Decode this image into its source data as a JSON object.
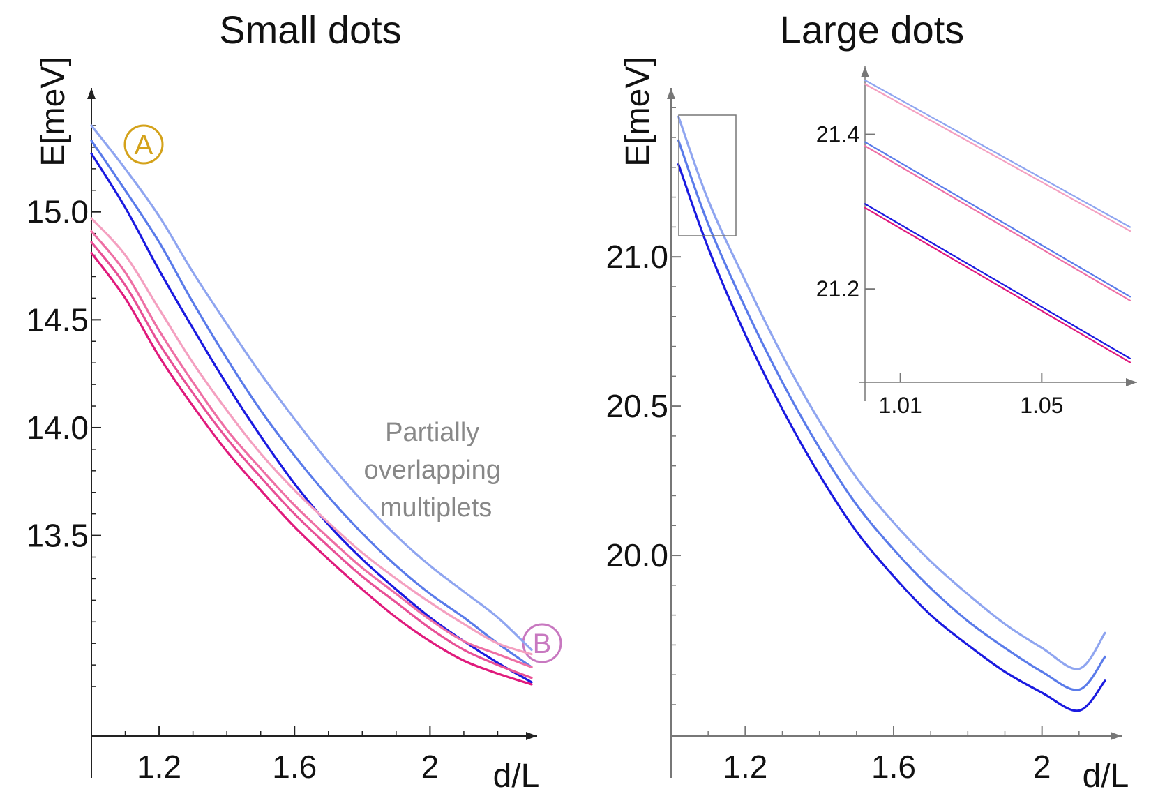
{
  "chart_data": [
    {
      "type": "line",
      "title": "Small dots",
      "xlabel": "d/L",
      "ylabel": "E[meV]",
      "xlim": [
        1.0,
        2.3
      ],
      "ylim": [
        12.7,
        15.4
      ],
      "xticks": [
        "1.2",
        "1.6",
        "2"
      ],
      "yticks": [
        "13.5",
        "14.0",
        "14.5",
        "15.0"
      ],
      "grid": false,
      "annotations": [
        {
          "text": "Partially overlapping multiplets",
          "lines": [
            "Partially",
            "overlapping",
            "multiplets"
          ],
          "color": "#888888"
        }
      ],
      "markers": [
        {
          "label": "A",
          "color": "#D4A21A"
        },
        {
          "label": "B",
          "color": "#C878C0"
        }
      ],
      "series": [
        {
          "color": "#8FA5F0",
          "x": [
            1.0,
            1.1,
            1.2,
            1.3,
            1.4,
            1.5,
            1.6,
            1.7,
            1.8,
            1.9,
            2.0,
            2.1,
            2.2,
            2.3
          ],
          "values": [
            15.4,
            15.2,
            14.98,
            14.72,
            14.48,
            14.25,
            14.04,
            13.84,
            13.66,
            13.5,
            13.36,
            13.24,
            13.12,
            12.97
          ]
        },
        {
          "color": "#5A7BEA",
          "x": [
            1.0,
            1.1,
            1.2,
            1.3,
            1.4,
            1.5,
            1.6,
            1.7,
            1.8,
            1.9,
            2.0,
            2.1,
            2.2,
            2.3
          ],
          "values": [
            15.33,
            15.1,
            14.86,
            14.58,
            14.32,
            14.08,
            13.87,
            13.68,
            13.51,
            13.36,
            13.23,
            13.12,
            13.0,
            12.89
          ]
        },
        {
          "color": "#1A1AE0",
          "x": [
            1.0,
            1.1,
            1.2,
            1.3,
            1.4,
            1.5,
            1.6,
            1.7,
            1.8,
            1.9,
            2.0,
            2.1,
            2.2,
            2.3
          ],
          "values": [
            15.27,
            15.02,
            14.73,
            14.46,
            14.2,
            13.96,
            13.74,
            13.55,
            13.39,
            13.25,
            13.12,
            13.01,
            12.91,
            12.82
          ]
        },
        {
          "color": "#F4A0C0",
          "x": [
            1.0,
            1.1,
            1.2,
            1.3,
            1.4,
            1.5,
            1.6,
            1.7,
            1.8,
            1.9,
            2.0,
            2.1,
            2.2,
            2.3
          ],
          "values": [
            14.97,
            14.8,
            14.55,
            14.3,
            14.08,
            13.88,
            13.71,
            13.56,
            13.42,
            13.3,
            13.19,
            13.09,
            13.0,
            12.95
          ]
        },
        {
          "color": "#EE6FA4",
          "x": [
            1.0,
            1.1,
            1.2,
            1.3,
            1.4,
            1.5,
            1.6,
            1.7,
            1.8,
            1.9,
            2.0,
            2.1,
            2.2,
            2.3
          ],
          "values": [
            14.91,
            14.72,
            14.45,
            14.21,
            13.99,
            13.81,
            13.64,
            13.49,
            13.35,
            13.23,
            13.11,
            13.01,
            12.95,
            12.89
          ]
        },
        {
          "color": "#E85096",
          "x": [
            1.0,
            1.1,
            1.2,
            1.3,
            1.4,
            1.5,
            1.6,
            1.7,
            1.8,
            1.9,
            2.0,
            2.1,
            2.2,
            2.3
          ],
          "values": [
            14.86,
            14.66,
            14.39,
            14.16,
            13.95,
            13.77,
            13.6,
            13.45,
            13.31,
            13.19,
            13.07,
            12.97,
            12.9,
            12.84
          ]
        },
        {
          "color": "#E01A7C",
          "x": [
            1.0,
            1.1,
            1.2,
            1.3,
            1.4,
            1.5,
            1.6,
            1.7,
            1.8,
            1.9,
            2.0,
            2.1,
            2.2,
            2.3
          ],
          "values": [
            14.81,
            14.6,
            14.33,
            14.1,
            13.89,
            13.71,
            13.54,
            13.39,
            13.25,
            13.12,
            13.01,
            12.92,
            12.86,
            12.81
          ]
        }
      ]
    },
    {
      "type": "line",
      "title": "Large dots",
      "xlabel": "d/L",
      "ylabel": "E[meV]",
      "xlim": [
        1.0,
        2.2
      ],
      "ylim": [
        19.5,
        21.58
      ],
      "xticks": [
        "1.2",
        "1.6",
        "2"
      ],
      "yticks": [
        "20.0",
        "20.5",
        "21.0"
      ],
      "grid": false,
      "series": [
        {
          "color": "#8FA5F0",
          "x": [
            1.02,
            1.1,
            1.2,
            1.3,
            1.4,
            1.5,
            1.6,
            1.7,
            1.8,
            1.9,
            2.0,
            2.1,
            2.17
          ],
          "values": [
            21.47,
            21.19,
            20.92,
            20.67,
            20.45,
            20.26,
            20.11,
            19.98,
            19.87,
            19.77,
            19.69,
            19.62,
            19.74
          ]
        },
        {
          "color": "#5A7BEA",
          "x": [
            1.02,
            1.1,
            1.2,
            1.3,
            1.4,
            1.5,
            1.6,
            1.7,
            1.8,
            1.9,
            2.0,
            2.1,
            2.17
          ],
          "values": [
            21.39,
            21.11,
            20.83,
            20.58,
            20.36,
            20.17,
            20.02,
            19.89,
            19.78,
            19.69,
            19.61,
            19.55,
            19.66
          ]
        },
        {
          "color": "#1A1AE0",
          "x": [
            1.02,
            1.1,
            1.2,
            1.3,
            1.4,
            1.5,
            1.6,
            1.7,
            1.8,
            1.9,
            2.0,
            2.1,
            2.17
          ],
          "values": [
            21.31,
            21.03,
            20.74,
            20.49,
            20.27,
            20.08,
            19.93,
            19.8,
            19.7,
            19.61,
            19.54,
            19.48,
            19.58
          ]
        }
      ]
    },
    {
      "type": "line",
      "title": "",
      "xlabel": "",
      "ylabel": "",
      "xlim": [
        1.0,
        1.075
      ],
      "ylim": [
        21.1,
        21.47
      ],
      "xticks": [
        "1.01",
        "1.05"
      ],
      "yticks": [
        "21.2",
        "21.4"
      ],
      "grid": false,
      "series": [
        {
          "color": "#8FA5F0",
          "x": [
            1.0,
            1.075
          ],
          "values": [
            21.47,
            21.28
          ]
        },
        {
          "color": "#F4A0C0",
          "x": [
            1.0,
            1.075
          ],
          "values": [
            21.465,
            21.275
          ]
        },
        {
          "color": "#5A7BEA",
          "x": [
            1.0,
            1.075
          ],
          "values": [
            21.39,
            21.19
          ]
        },
        {
          "color": "#EE6FA4",
          "x": [
            1.0,
            1.075
          ],
          "values": [
            21.385,
            21.185
          ]
        },
        {
          "color": "#1A1AE0",
          "x": [
            1.0,
            1.075
          ],
          "values": [
            21.31,
            21.11
          ]
        },
        {
          "color": "#E01A7C",
          "x": [
            1.0,
            1.075
          ],
          "values": [
            21.305,
            21.105
          ]
        }
      ]
    }
  ]
}
